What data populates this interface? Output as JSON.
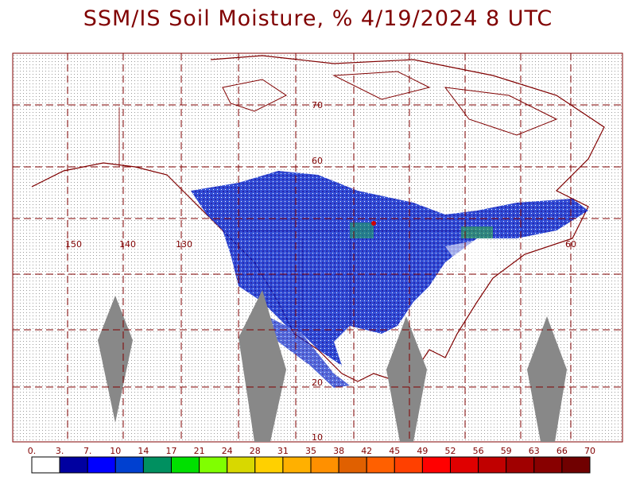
{
  "header": {
    "title": "SSM/IS Soil Moisture, % 4/19/2024 8 UTC"
  },
  "map": {
    "latitude_labels": [
      "70",
      "60",
      "20",
      "10"
    ],
    "longitude_labels": [
      "150",
      "140",
      "130",
      "60"
    ]
  },
  "colorbar": {
    "labels": [
      "0.",
      "3.",
      "7.",
      "10",
      "14",
      "17",
      "21",
      "24",
      "28",
      "31",
      "35",
      "38",
      "42",
      "45",
      "49",
      "52",
      "56",
      "59",
      "63",
      "66",
      "70"
    ],
    "colors": [
      "#ffffff",
      "#0000a0",
      "#0000ff",
      "#0040d0",
      "#009060",
      "#00e000",
      "#80ff00",
      "#d8d800",
      "#ffd000",
      "#ffb000",
      "#ff9000",
      "#e06000",
      "#ff6000",
      "#ff4000",
      "#ff0000",
      "#e00000",
      "#c00000",
      "#a00000",
      "#880000",
      "#700000"
    ]
  }
}
